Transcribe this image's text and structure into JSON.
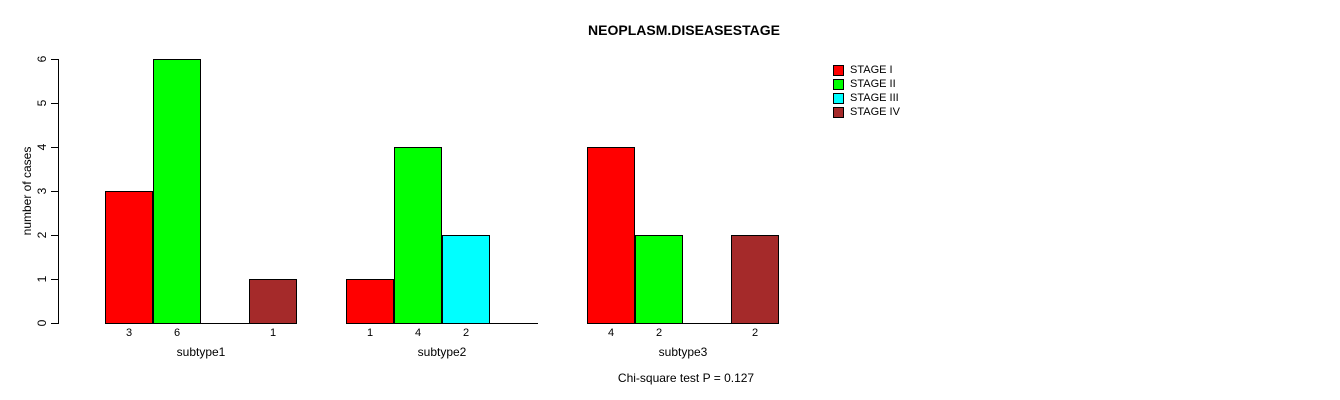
{
  "chart_data": {
    "type": "bar",
    "title": "NEOPLASM.DISEASESTAGE",
    "ylabel": "number of cases",
    "xlabel": "",
    "ylim": [
      0,
      6
    ],
    "yticks": [
      "0",
      "1",
      "2",
      "3",
      "4",
      "5",
      "6"
    ],
    "categories": [
      "subtype1",
      "subtype2",
      "subtype3"
    ],
    "series": [
      {
        "name": "STAGE I",
        "color": "#FF0000",
        "values": [
          3,
          1,
          4
        ]
      },
      {
        "name": "STAGE II",
        "color": "#00FF00",
        "values": [
          6,
          4,
          2
        ]
      },
      {
        "name": "STAGE III",
        "color": "#00FFFF",
        "values": [
          0,
          2,
          0
        ]
      },
      {
        "name": "STAGE IV",
        "color": "#A52A2A",
        "values": [
          1,
          0,
          2
        ]
      }
    ],
    "bar_labels": [
      [
        "3",
        "6",
        "",
        "1"
      ],
      [
        "1",
        "4",
        "2",
        ""
      ],
      [
        "4",
        "2",
        "",
        "2"
      ]
    ],
    "annotation": "Chi-square test P = 0.127",
    "legend": {
      "position": "top-right",
      "entries": [
        "STAGE I",
        "STAGE II",
        "STAGE III",
        "STAGE IV"
      ]
    },
    "grid": false,
    "axis_color": "#000000",
    "background": "#FFFFFF"
  }
}
